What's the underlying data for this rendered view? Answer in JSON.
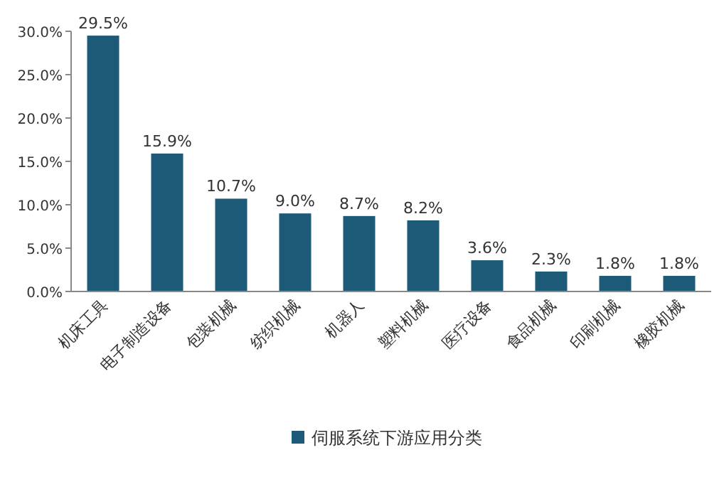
{
  "chart_data": {
    "type": "bar",
    "categories": [
      "机床工具",
      "电子制造设备",
      "包装机械",
      "纺织机械",
      "机器人",
      "塑料机械",
      "医疗设备",
      "食品机械",
      "印刷机械",
      "橡胶机械"
    ],
    "series": [
      {
        "name": "伺服系统下游应用分类",
        "color": "#1d5a78",
        "values": [
          29.5,
          15.9,
          10.7,
          9.0,
          8.7,
          8.2,
          3.6,
          2.3,
          1.8,
          1.8
        ],
        "value_labels": [
          "29.5%",
          "15.9%",
          "10.7%",
          "9.0%",
          "8.7%",
          "8.2%",
          "3.6%",
          "2.3%",
          "1.8%",
          "1.8%"
        ]
      }
    ],
    "ylim": [
      0,
      30
    ],
    "yticks": [
      {
        "value": 0,
        "label": "0.0%"
      },
      {
        "value": 5,
        "label": "5.0%"
      },
      {
        "value": 10,
        "label": "10.0%"
      },
      {
        "value": 15,
        "label": "15.0%"
      },
      {
        "value": 20,
        "label": "20.0%"
      },
      {
        "value": 25,
        "label": "25.0%"
      },
      {
        "value": 30,
        "label": "30.0%"
      }
    ],
    "grid": false,
    "legend": "bottom"
  }
}
